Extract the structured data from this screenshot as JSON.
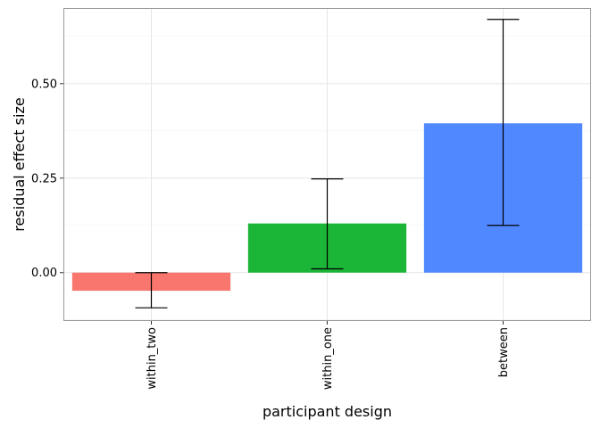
{
  "chart_data": {
    "type": "bar",
    "xlabel": "participant design",
    "ylabel": "residual effect size",
    "categories": [
      "within_two",
      "within_one",
      "between"
    ],
    "values": [
      -0.048,
      0.13,
      0.395
    ],
    "error_lower": [
      -0.093,
      0.01,
      0.125
    ],
    "error_upper": [
      0.0,
      0.248,
      0.67
    ],
    "colors": [
      "#F8766D",
      "#1BB537",
      "#5088FF"
    ],
    "y_ticks": [
      0.0,
      0.25,
      0.5
    ],
    "y_tick_labels": [
      "0.00",
      "0.25",
      "0.50"
    ],
    "ylim": [
      -0.128,
      0.7
    ],
    "grid": true,
    "legend": "none"
  }
}
